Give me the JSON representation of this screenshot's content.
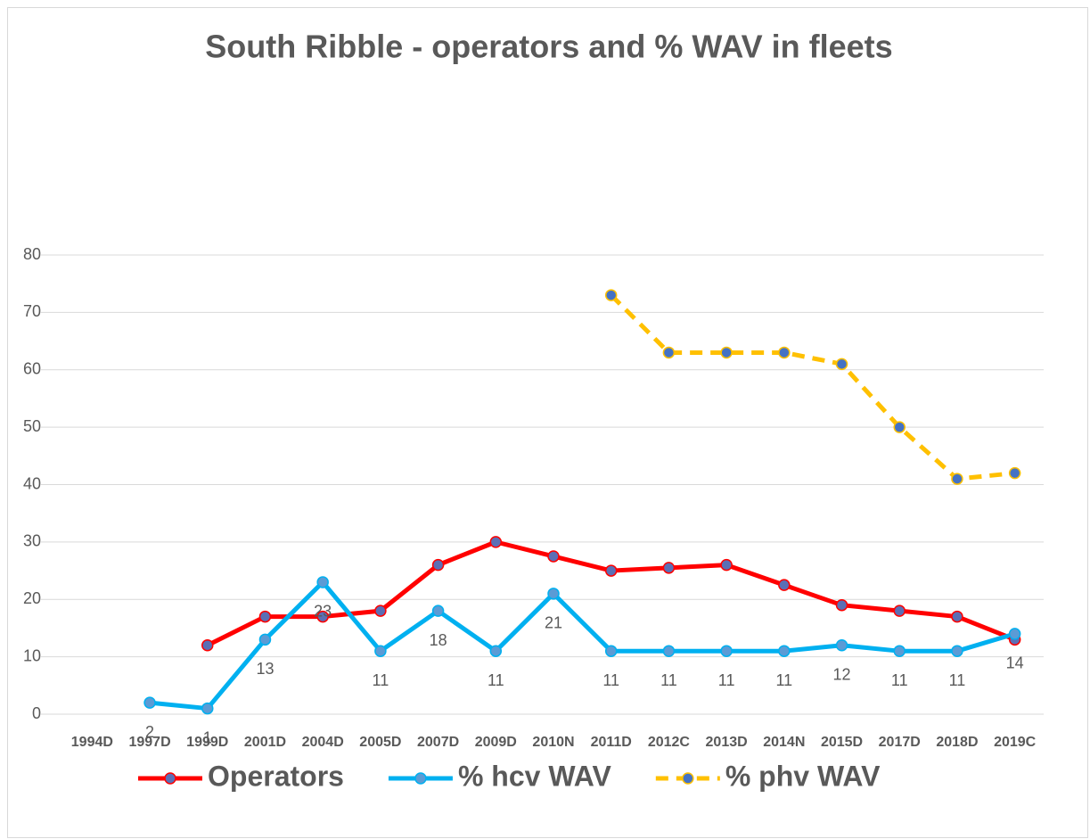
{
  "chart_data": {
    "type": "line",
    "title": "South Ribble - operators and % WAV in fleets",
    "categories": [
      "1994D",
      "1997D",
      "1999D",
      "2001D",
      "2004D",
      "2005D",
      "2007D",
      "2009D",
      "2010N",
      "2011D",
      "2012C",
      "2013D",
      "2014N",
      "2015D",
      "2017D",
      "2018D",
      "2019C"
    ],
    "series": [
      {
        "name": "Operators",
        "color": "#ff0000",
        "marker_color": "#5b6fb5",
        "dash": false,
        "show_labels": false,
        "values": [
          null,
          null,
          12,
          17,
          17,
          18,
          26,
          30,
          27.5,
          25,
          25.5,
          26,
          22.5,
          19,
          18,
          17,
          13
        ]
      },
      {
        "name": "% hcv WAV",
        "color": "#00b0f0",
        "marker_color": "#5b9bd5",
        "dash": false,
        "show_labels": true,
        "values": [
          null,
          2,
          1,
          13,
          23,
          11,
          18,
          11,
          21,
          11,
          11,
          11,
          11,
          12,
          11,
          11,
          14
        ]
      },
      {
        "name": "% phv WAV",
        "color": "#ffc000",
        "marker_color": "#4472c4",
        "dash": true,
        "show_labels": false,
        "values": [
          null,
          null,
          null,
          null,
          null,
          null,
          null,
          null,
          null,
          73,
          63,
          63,
          63,
          61,
          50,
          41,
          42
        ]
      }
    ],
    "ylim": [
      0,
      80
    ],
    "yticks": [
      0,
      10,
      20,
      30,
      40,
      50,
      60,
      70,
      80
    ],
    "grid": true,
    "legend": "bottom"
  }
}
